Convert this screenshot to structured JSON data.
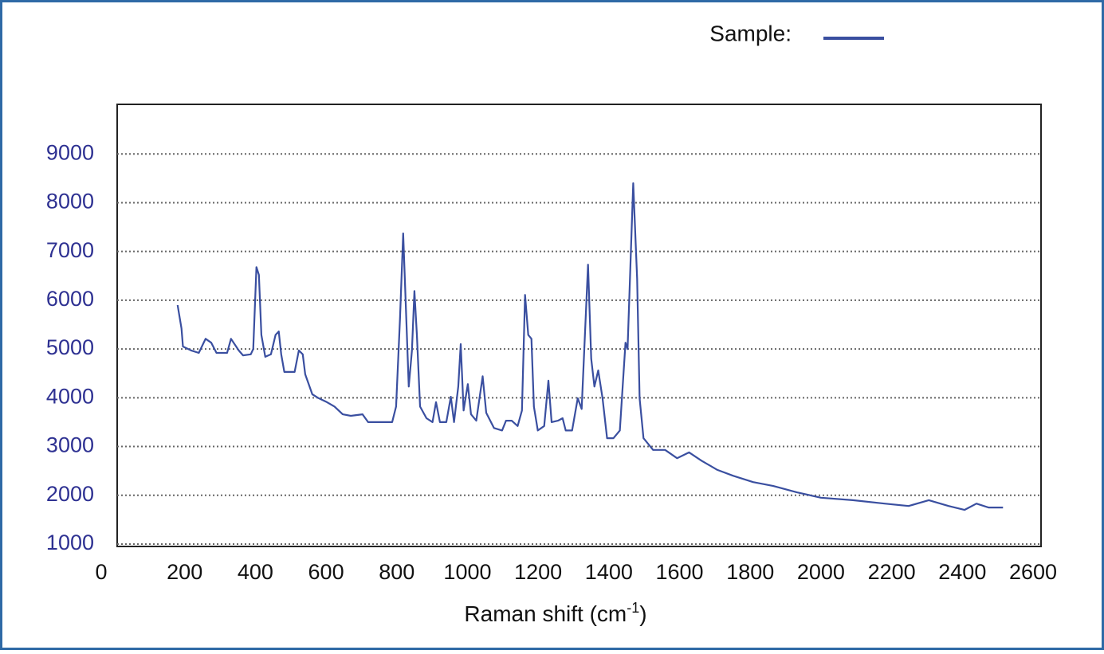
{
  "chart_data": {
    "type": "line",
    "legend_label": "Sample:",
    "xlabel": {
      "text": "Raman shift (cm",
      "sup": "-1",
      "tail": ")"
    },
    "xlim": [
      0,
      2600
    ],
    "xticks": [
      0,
      200,
      400,
      600,
      800,
      1000,
      1200,
      1400,
      1600,
      1800,
      2000,
      2200,
      2400,
      2600
    ],
    "ylim": [
      1000,
      10000
    ],
    "yticks": [
      1000,
      2000,
      3000,
      4000,
      5000,
      6000,
      7000,
      8000,
      9000
    ],
    "grid": true,
    "series": [
      {
        "name": "Sample:",
        "color": "#3a4fa0",
        "x": [
          180,
          191,
          195,
          218,
          240,
          259,
          275,
          290,
          320,
          331,
          353,
          365,
          387,
          394,
          403,
          410,
          417,
          428,
          444,
          457,
          466,
          473,
          482,
          511,
          523,
          534,
          541,
          561,
          579,
          602,
          624,
          647,
          670,
          703,
          719,
          760,
          787,
          798,
          809,
          818,
          827,
          834,
          843,
          850,
          857,
          866,
          884,
          901,
          911,
          922,
          940,
          953,
          962,
          974,
          981,
          989,
          1001,
          1010,
          1025,
          1043,
          1053,
          1075,
          1098,
          1109,
          1125,
          1142,
          1154,
          1163,
          1172,
          1181,
          1188,
          1199,
          1217,
          1229,
          1238,
          1256,
          1269,
          1278,
          1296,
          1312,
          1323,
          1341,
          1350,
          1359,
          1370,
          1382,
          1395,
          1413,
          1431,
          1447,
          1453,
          1469,
          1480,
          1487,
          1498,
          1525,
          1559,
          1593,
          1627,
          1662,
          1707,
          1752,
          1808,
          1865,
          1932,
          2000,
          2090,
          2180,
          2248,
          2305,
          2361,
          2406,
          2440,
          2474,
          2515
        ],
        "values": [
          5900,
          5420,
          5050,
          4970,
          4920,
          5210,
          5130,
          4920,
          4920,
          5210,
          4970,
          4870,
          4890,
          5000,
          6680,
          6520,
          5290,
          4840,
          4890,
          5290,
          5360,
          4890,
          4530,
          4530,
          4970,
          4890,
          4480,
          4070,
          3990,
          3910,
          3820,
          3660,
          3630,
          3660,
          3500,
          3500,
          3500,
          3820,
          5620,
          7370,
          5620,
          4230,
          4970,
          6190,
          5290,
          3820,
          3580,
          3500,
          3910,
          3500,
          3500,
          4020,
          3500,
          4230,
          5100,
          3740,
          4280,
          3660,
          3530,
          4440,
          3690,
          3380,
          3330,
          3530,
          3530,
          3420,
          3740,
          6110,
          5290,
          5210,
          3820,
          3330,
          3420,
          4350,
          3500,
          3530,
          3580,
          3330,
          3330,
          3990,
          3770,
          6730,
          4800,
          4230,
          4560,
          3990,
          3170,
          3170,
          3330,
          5130,
          5000,
          8400,
          6440,
          3990,
          3170,
          2930,
          2930,
          2760,
          2880,
          2710,
          2520,
          2400,
          2270,
          2190,
          2060,
          1950,
          1900,
          1830,
          1780,
          1900,
          1780,
          1700,
          1830,
          1750,
          1750
        ]
      }
    ]
  }
}
